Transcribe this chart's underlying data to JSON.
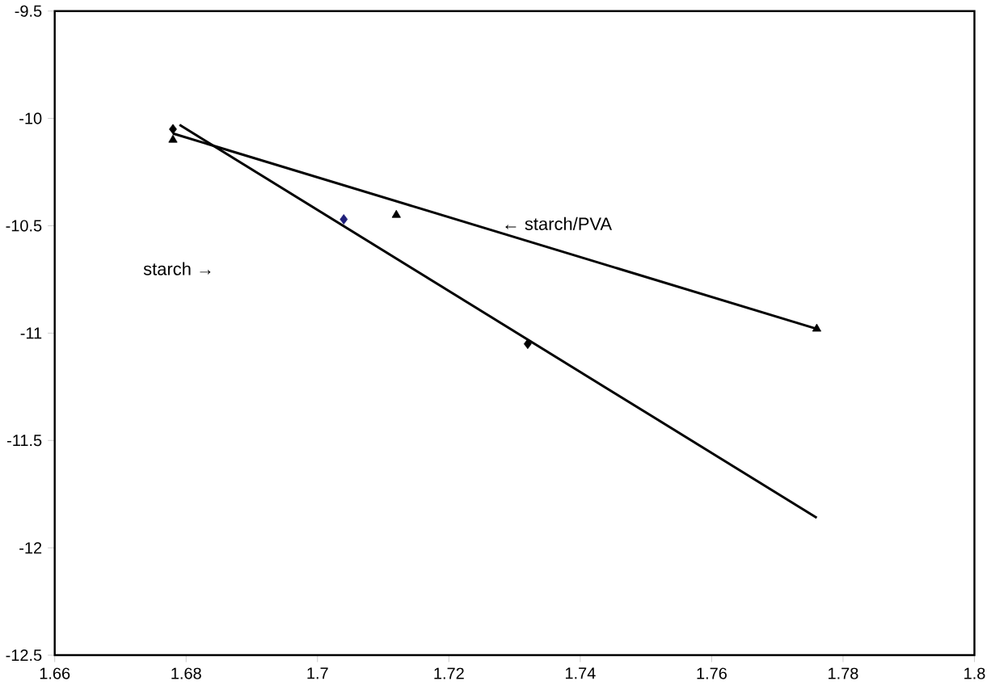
{
  "chart_data": {
    "type": "scatter",
    "xlim": [
      1.66,
      1.8
    ],
    "ylim": [
      -12.5,
      -9.5
    ],
    "xticks": [
      1.66,
      1.68,
      1.7,
      1.72,
      1.74,
      1.76,
      1.78,
      1.8
    ],
    "yticks": [
      -12.5,
      -12,
      -11.5,
      -11,
      -10.5,
      -10,
      -9.5
    ],
    "grid": false,
    "series": [
      {
        "marker": "diamond",
        "x": [
          1.678,
          1.704,
          1.732
        ],
        "values": [
          -10.05,
          -10.47,
          -11.05
        ],
        "colors": [
          "#000000",
          "#1f1f7a",
          "#000000"
        ]
      },
      {
        "marker": "triangle",
        "x": [
          1.678,
          1.712,
          1.776
        ],
        "values": [
          -10.1,
          -10.45,
          -10.98
        ],
        "color": "#000000"
      },
      {
        "type": "line",
        "marker": "none",
        "x": [
          1.679,
          1.776
        ],
        "values": [
          -10.03,
          -11.86
        ],
        "color": "#000000"
      },
      {
        "type": "line",
        "marker": "none",
        "x": [
          1.678,
          1.776
        ],
        "values": [
          -10.07,
          -10.98
        ],
        "color": "#000000"
      }
    ],
    "annotations": [
      "← starch/PVA",
      "starch  →"
    ]
  }
}
